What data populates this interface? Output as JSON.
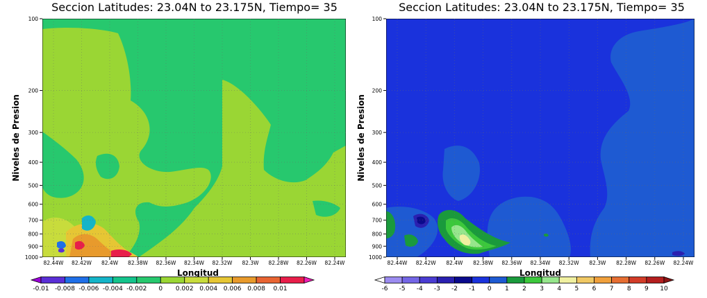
{
  "chart_data": [
    {
      "type": "heatmap",
      "title": "Seccion Latitudes: 23.04N to 23.175N, Tiempo= 35",
      "xlabel": "Longitud",
      "ylabel": "Niveles de Presion",
      "x_ticks": [
        "82.44W",
        "82.42W",
        "82.4W",
        "82.38W",
        "82.36W",
        "82.34W",
        "82.32W",
        "82.3W",
        "82.28W",
        "82.26W",
        "82.24W"
      ],
      "y_ticks": [
        "100",
        "200",
        "300",
        "400",
        "500",
        "600",
        "700",
        "800",
        "900",
        "1000"
      ],
      "y_scale": "log",
      "ylim": [
        1000,
        100
      ],
      "grid": true,
      "colorbar": {
        "labels": [
          "-0.01",
          "-0.008",
          "-0.006",
          "-0.004",
          "-0.002",
          "0",
          "0.002",
          "0.004",
          "0.006",
          "0.008",
          "0.01"
        ],
        "colors": [
          "#9b00d9",
          "#5a2fd6",
          "#1f6fe8",
          "#14b4c8",
          "#14c48c",
          "#27c86e",
          "#9ad634",
          "#c8dc3c",
          "#e6c634",
          "#e89a2c",
          "#e86432",
          "#e81e4a",
          "#f01eb4"
        ]
      },
      "regions": [
        {
          "level": "0",
          "x_range": [
            "82.44W",
            "82.24W"
          ],
          "p_range": [
            100,
            1000
          ]
        },
        {
          "level": "0.002",
          "x_range": [
            "82.44W",
            "82.38W"
          ],
          "p_range": [
            110,
            1000
          ]
        },
        {
          "level": "0.002",
          "x_range": [
            "82.34W",
            "82.24W"
          ],
          "p_range": [
            160,
            1000
          ]
        },
        {
          "level": "0.006",
          "x_range": [
            "82.43W",
            "82.41W"
          ],
          "p_range": [
            850,
            940
          ]
        },
        {
          "level": "0.01",
          "x_range": [
            "82.385W",
            "82.38W"
          ],
          "p_range": [
            940,
            1000
          ]
        },
        {
          "level": "-0.004",
          "x_range": [
            "82.425W",
            "82.415W"
          ],
          "p_range": [
            720,
            800
          ]
        }
      ]
    },
    {
      "type": "heatmap",
      "title": "Seccion Latitudes: 23.04N to 23.175N, Tiempo= 35",
      "xlabel": "Longitud",
      "ylabel": "Niveles de Presion",
      "x_ticks": [
        "82.44W",
        "82.42W",
        "82.4W",
        "82.38W",
        "82.36W",
        "82.34W",
        "82.32W",
        "82.3W",
        "82.28W",
        "82.26W",
        "82.24W"
      ],
      "y_ticks": [
        "100",
        "200",
        "300",
        "400",
        "500",
        "600",
        "700",
        "800",
        "900",
        "1000"
      ],
      "y_scale": "log",
      "ylim": [
        1000,
        100
      ],
      "grid": true,
      "colorbar": {
        "labels": [
          "-6",
          "-5",
          "-4",
          "-3",
          "-2",
          "-1",
          "0",
          "1",
          "2",
          "3",
          "4",
          "5",
          "6",
          "7",
          "8",
          "9",
          "10"
        ],
        "colors": [
          "#ffffff",
          "#9c8cf0",
          "#7466e6",
          "#4a3cd2",
          "#2a20b0",
          "#0a0a8c",
          "#1a32dc",
          "#1e5ad2",
          "#1a9a3c",
          "#3cc83c",
          "#96e68c",
          "#f0f0a0",
          "#f0c864",
          "#f0a03c",
          "#e66e32",
          "#d23c28",
          "#b41e1e",
          "#8c1414"
        ]
      },
      "regions": [
        {
          "level": "-1",
          "x_range": [
            "82.44W",
            "82.24W"
          ],
          "p_range": [
            100,
            1000
          ]
        },
        {
          "level": "0",
          "x_range": [
            "82.28W",
            "82.24W"
          ],
          "p_range": [
            100,
            1000
          ]
        },
        {
          "level": "0",
          "x_range": [
            "82.38W",
            "82.33W"
          ],
          "p_range": [
            400,
            1000
          ]
        },
        {
          "level": "2",
          "x_range": [
            "82.405W",
            "82.37W"
          ],
          "p_range": [
            700,
            960
          ]
        },
        {
          "level": "4",
          "x_range": [
            "82.398W",
            "82.387W"
          ],
          "p_range": [
            840,
            920
          ]
        },
        {
          "level": "-3",
          "x_range": [
            "82.425W",
            "82.416W"
          ],
          "p_range": [
            690,
            760
          ]
        }
      ]
    }
  ]
}
